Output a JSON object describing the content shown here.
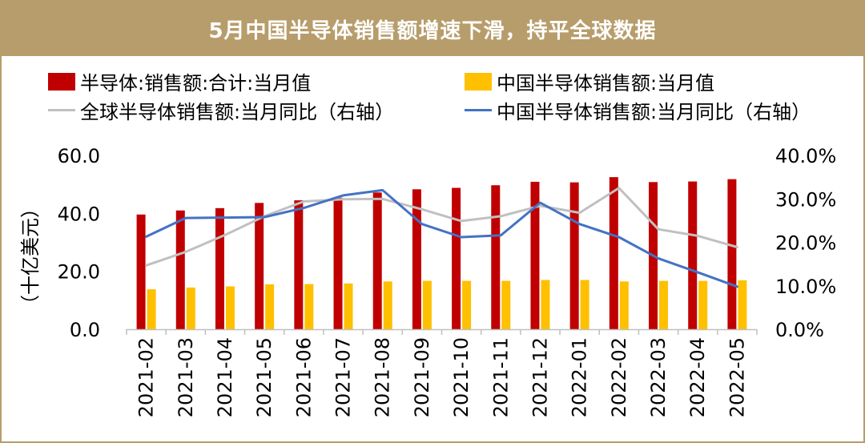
{
  "title": "5月中国半导体销售额增速下滑，持平全球数据",
  "chart_data": {
    "type": "bar+line",
    "categories": [
      "2021-02",
      "2021-03",
      "2021-04",
      "2021-05",
      "2021-06",
      "2021-07",
      "2021-08",
      "2021-09",
      "2021-10",
      "2021-11",
      "2021-12",
      "2022-01",
      "2022-02",
      "2022-03",
      "2022-04",
      "2022-05"
    ],
    "ylabel": "（十亿美元）",
    "ylim": [
      0,
      60
    ],
    "y_ticks": [
      "0.0",
      "20.0",
      "40.0",
      "60.0"
    ],
    "y2lim": [
      0,
      40
    ],
    "y2_ticks": [
      "0.0%",
      "10.0%",
      "20.0%",
      "30.0%",
      "40.0%"
    ],
    "bar_series": [
      {
        "name": "半导体:销售额:合计:当月值",
        "color": "#c00000",
        "values": [
          39.6,
          41.0,
          41.8,
          43.6,
          44.5,
          45.4,
          47.2,
          48.3,
          48.8,
          49.7,
          50.9,
          50.7,
          52.5,
          50.8,
          51.0,
          51.8
        ]
      },
      {
        "name": "中国半导体销售额:当月值",
        "color": "#ffc000",
        "values": [
          13.8,
          14.4,
          14.8,
          15.5,
          15.6,
          15.8,
          16.5,
          16.7,
          16.7,
          16.7,
          17.0,
          17.0,
          16.5,
          16.7,
          16.7,
          16.9
        ]
      }
    ],
    "line_series": [
      {
        "name": "全球半导体销售额:当月同比（右轴）",
        "color": "#c0c0c0",
        "values": [
          14.7,
          17.8,
          21.7,
          26.0,
          29.4,
          29.9,
          30.0,
          27.6,
          24.9,
          26.0,
          28.4,
          26.8,
          32.5,
          23.0,
          21.5,
          18.9
        ]
      },
      {
        "name": "中国半导体销售额:当月同比（右轴）",
        "color": "#4472c4",
        "values": [
          21.3,
          25.6,
          25.7,
          25.8,
          27.9,
          30.8,
          32.0,
          24.2,
          21.2,
          21.6,
          29.1,
          24.2,
          21.2,
          16.3,
          13.1,
          9.8
        ]
      }
    ],
    "grid": false,
    "legend_position": "top"
  }
}
